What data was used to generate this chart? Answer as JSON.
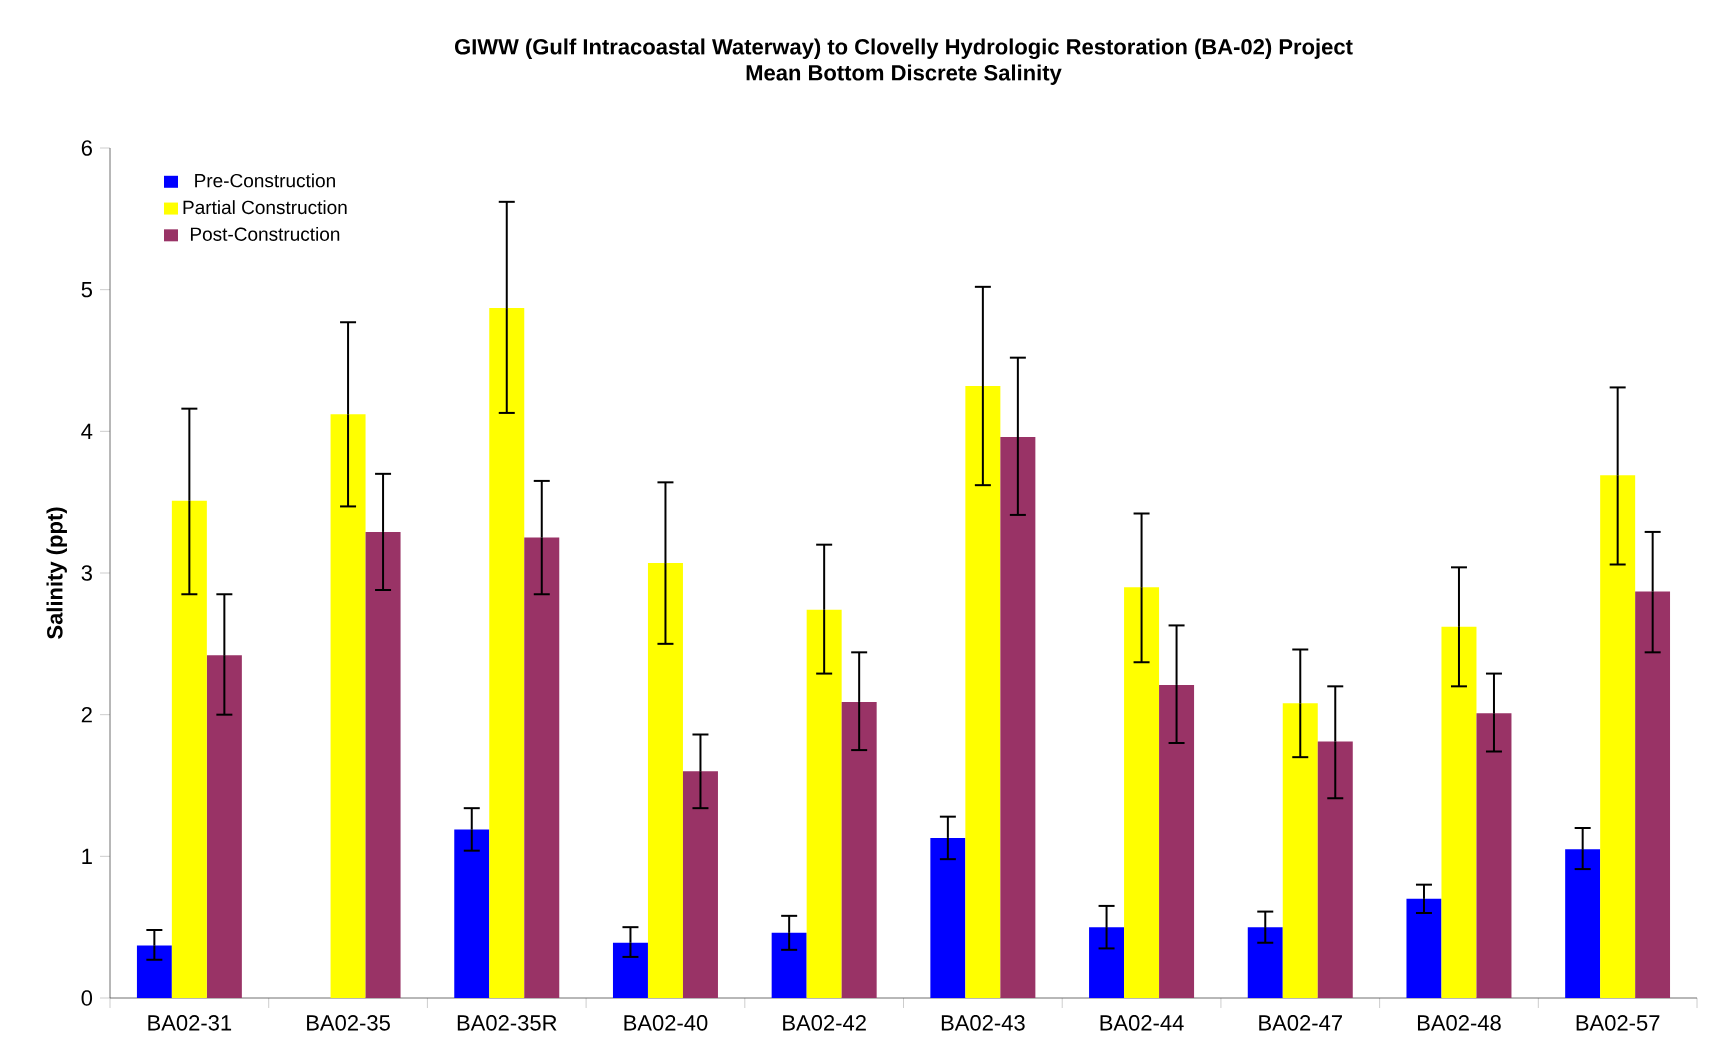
{
  "chart_data": {
    "type": "bar",
    "title": "GIWW (Gulf Intracoastal Waterway) to Clovelly Hydrologic Restoration (BA-02) Project",
    "subtitle": "Mean Bottom Discrete Salinity",
    "ylabel": "Salinity (ppt)",
    "categories": [
      "BA02-31",
      "BA02-35",
      "BA02-35R",
      "BA02-40",
      "BA02-42",
      "BA02-43",
      "BA02-44",
      "BA02-47",
      "BA02-48",
      "BA02-57"
    ],
    "series": [
      {
        "name": "Pre-Construction",
        "color": "#0000ff",
        "values": [
          0.37,
          null,
          1.19,
          0.39,
          0.46,
          1.13,
          0.5,
          0.5,
          0.7,
          1.05
        ],
        "errors": [
          [
            0.27,
            0.48
          ],
          null,
          [
            1.04,
            1.34
          ],
          [
            0.29,
            0.5
          ],
          [
            0.34,
            0.58
          ],
          [
            0.98,
            1.28
          ],
          [
            0.35,
            0.65
          ],
          [
            0.39,
            0.61
          ],
          [
            0.6,
            0.8
          ],
          [
            0.91,
            1.2
          ]
        ]
      },
      {
        "name": "Partial Construction",
        "color": "#ffff00",
        "values": [
          3.51,
          4.12,
          4.87,
          3.07,
          2.74,
          4.32,
          2.9,
          2.08,
          2.62,
          3.69
        ],
        "errors": [
          [
            2.85,
            4.16
          ],
          [
            3.47,
            4.77
          ],
          [
            4.13,
            5.62
          ],
          [
            2.5,
            3.64
          ],
          [
            2.29,
            3.2
          ],
          [
            3.62,
            5.02
          ],
          [
            2.37,
            3.42
          ],
          [
            1.7,
            2.46
          ],
          [
            2.2,
            3.04
          ],
          [
            3.06,
            4.31
          ]
        ]
      },
      {
        "name": "Post-Construction",
        "color": "#993366",
        "values": [
          2.42,
          3.29,
          3.25,
          1.6,
          2.09,
          3.96,
          2.21,
          1.81,
          2.01,
          2.87
        ],
        "errors": [
          [
            2.0,
            2.85
          ],
          [
            2.88,
            3.7
          ],
          [
            2.85,
            3.65
          ],
          [
            1.34,
            1.86
          ],
          [
            1.75,
            2.44
          ],
          [
            3.41,
            4.52
          ],
          [
            1.8,
            2.63
          ],
          [
            1.41,
            2.2
          ],
          [
            1.74,
            2.29
          ],
          [
            2.44,
            3.29
          ]
        ]
      }
    ],
    "ylim": [
      0,
      6
    ],
    "yticks": [
      0,
      1,
      2,
      3,
      4,
      5,
      6
    ],
    "legend": "top left",
    "grid": false
  }
}
